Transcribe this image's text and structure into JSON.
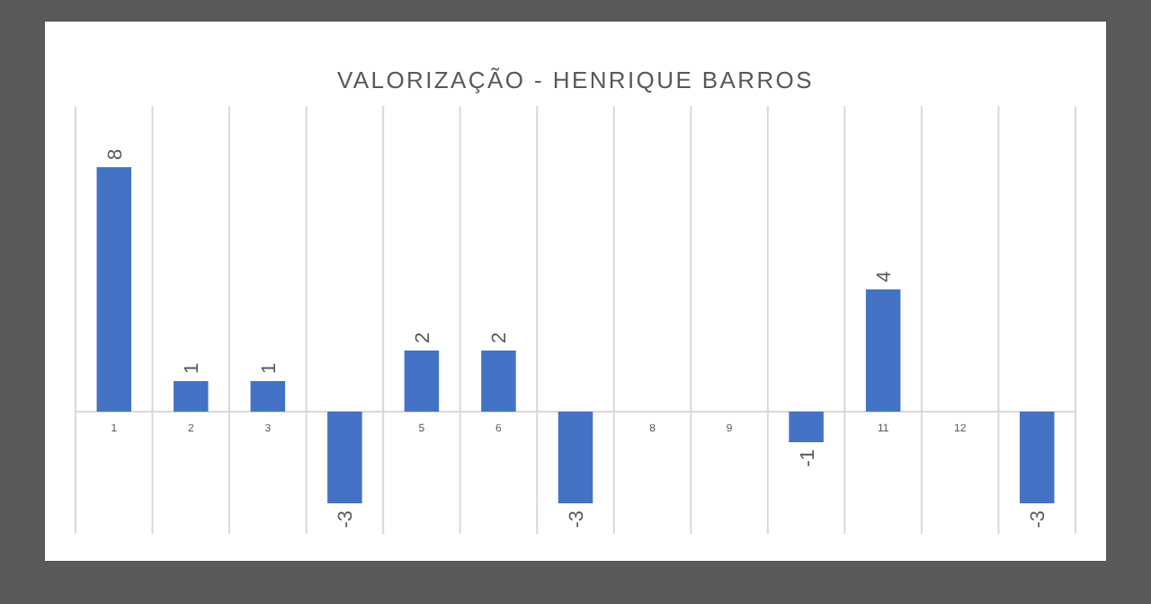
{
  "chart_data": {
    "type": "bar",
    "title": "VALORIZAÇÃO - HENRIQUE BARROS",
    "categories": [
      "1",
      "2",
      "3",
      null,
      "5",
      "6",
      null,
      "8",
      "9",
      null,
      "11",
      "12",
      null
    ],
    "values": [
      8,
      1,
      1,
      -3,
      2,
      2,
      -3,
      null,
      null,
      -1,
      4,
      null,
      -3
    ],
    "color": "#4472c4",
    "ylim": [
      -4,
      10
    ],
    "data_labels": true,
    "grid": "x"
  }
}
